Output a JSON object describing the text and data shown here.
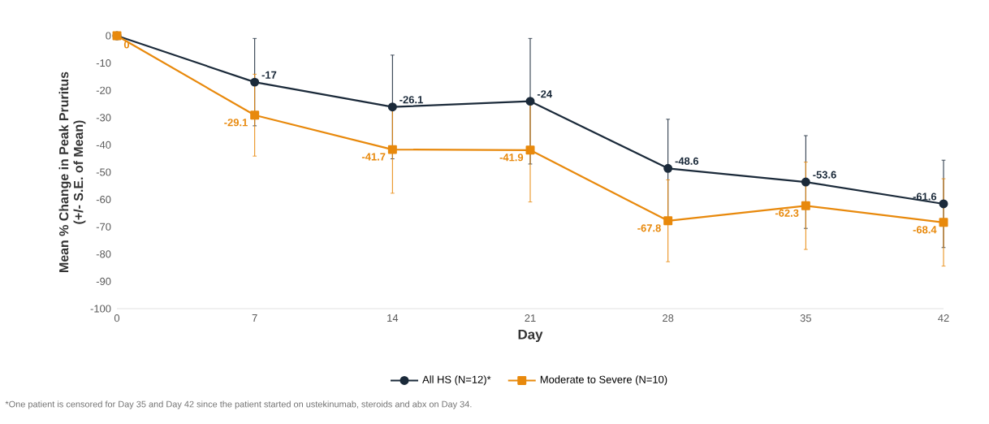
{
  "chart_data": {
    "type": "line",
    "ylabel": "Mean % Change in Peak Pruritus\n(+/- S.E. of Mean)",
    "xlabel": "Day",
    "x": [
      0,
      7,
      14,
      21,
      28,
      35,
      42
    ],
    "xlim": [
      0,
      42
    ],
    "xticks": [
      0,
      7,
      14,
      21,
      28,
      35,
      42
    ],
    "ylim": [
      -100,
      0
    ],
    "yticks": [
      0,
      -10,
      -20,
      -30,
      -40,
      -50,
      -60,
      -70,
      -80,
      -90,
      -100
    ],
    "series": [
      {
        "name": "All HS (N=12)*",
        "color": "#1b2a3a",
        "marker": "circle",
        "values": [
          0,
          -17,
          -26.1,
          -24,
          -48.6,
          -53.6,
          -61.6
        ],
        "errors": [
          null,
          16,
          19,
          23,
          18,
          17,
          16
        ],
        "value_labels": [
          null,
          "-17",
          "-26.1",
          "-24",
          "-48.6",
          "-53.6",
          "-61.6"
        ]
      },
      {
        "name": "Moderate to Severe (N=10)",
        "color": "#e8890c",
        "marker": "square",
        "values": [
          0,
          -29.1,
          -41.7,
          -41.9,
          -67.8,
          -62.3,
          -68.4
        ],
        "errors": [
          null,
          15,
          16,
          19,
          15,
          16,
          16
        ],
        "value_labels": [
          "0",
          "-29.1",
          "-41.7",
          "-41.9",
          "-67.8",
          "-62.3",
          "-68.4"
        ]
      }
    ],
    "legend": "bottom",
    "grid": false,
    "annotations": [
      "*One patient is censored for Day 35 and Day 42 since the patient started on ustekinumab, steroids and abx on Day 34."
    ]
  }
}
